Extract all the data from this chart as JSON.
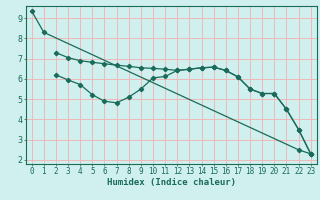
{
  "xlabel": "Humidex (Indice chaleur)",
  "xlim": [
    -0.5,
    23.5
  ],
  "ylim": [
    1.8,
    9.6
  ],
  "yticks": [
    2,
    3,
    4,
    5,
    6,
    7,
    8,
    9
  ],
  "xticks": [
    0,
    1,
    2,
    3,
    4,
    5,
    6,
    7,
    8,
    9,
    10,
    11,
    12,
    13,
    14,
    15,
    16,
    17,
    18,
    19,
    20,
    21,
    22,
    23
  ],
  "background_color": "#cff0ee",
  "grid_color": "#f0b8b8",
  "line_color": "#1a6b5a",
  "line1_x": [
    0,
    1,
    22,
    23
  ],
  "line1_y": [
    9.35,
    8.3,
    2.5,
    2.3
  ],
  "line2_x": [
    2,
    3,
    4,
    5,
    6,
    7,
    8,
    9,
    10,
    11,
    12,
    13,
    14,
    15,
    16,
    17,
    18,
    19,
    20,
    21,
    22,
    23
  ],
  "line2_y": [
    7.3,
    7.05,
    6.9,
    6.82,
    6.75,
    6.68,
    6.62,
    6.55,
    6.52,
    6.48,
    6.42,
    6.48,
    6.55,
    6.58,
    6.42,
    6.1,
    5.5,
    5.28,
    5.28,
    4.5,
    3.5,
    2.3
  ],
  "line3_x": [
    2,
    3,
    4,
    5,
    6,
    7,
    8,
    9,
    10,
    11,
    12,
    13,
    14,
    15,
    16,
    17,
    18,
    19,
    20,
    21,
    22,
    23
  ],
  "line3_y": [
    6.2,
    5.95,
    5.72,
    5.22,
    4.9,
    4.82,
    5.1,
    5.5,
    6.05,
    6.12,
    6.42,
    6.48,
    6.55,
    6.58,
    6.42,
    6.1,
    5.5,
    5.28,
    5.28,
    4.5,
    3.5,
    2.3
  ],
  "tick_fontsize": 5.5,
  "xlabel_fontsize": 6.5
}
